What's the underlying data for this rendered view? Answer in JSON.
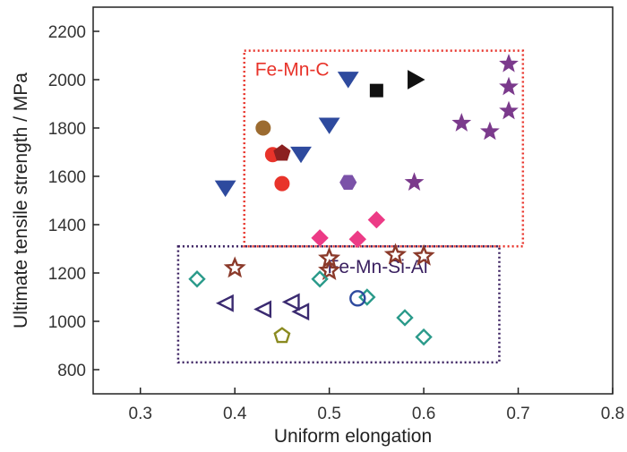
{
  "chart_data": {
    "type": "scatter",
    "title": "",
    "xlabel": "Uniform elongation",
    "ylabel": "Ultimate tensile strength / MPa",
    "xlim": [
      0.25,
      0.8
    ],
    "ylim": [
      700,
      2300
    ],
    "x_ticks": [
      "0.3",
      "0.4",
      "0.5",
      "0.6",
      "0.7",
      "0.8"
    ],
    "y_ticks": [
      "800",
      "1000",
      "1200",
      "1400",
      "1600",
      "1800",
      "2000",
      "2200"
    ],
    "grid": false,
    "legend": "none",
    "annotations": [
      {
        "label": "Fe-Mn-C",
        "color": "#e8332a",
        "box": {
          "x": [
            0.41,
            0.705
          ],
          "y": [
            1310,
            2120
          ]
        }
      },
      {
        "label": "Fe-Mn-Si-Al",
        "color": "#3a2060",
        "box": {
          "x": [
            0.34,
            0.68
          ],
          "y": [
            830,
            1310
          ]
        }
      }
    ],
    "series": [
      {
        "marker": "triangle-down",
        "filled": true,
        "color": "#2e4a9e",
        "points": [
          [
            0.39,
            1555
          ],
          [
            0.47,
            1695
          ],
          [
            0.5,
            1815
          ],
          [
            0.52,
            2005
          ]
        ]
      },
      {
        "marker": "square",
        "filled": true,
        "color": "#111111",
        "points": [
          [
            0.55,
            1955
          ]
        ]
      },
      {
        "marker": "triangle-right",
        "filled": true,
        "color": "#111111",
        "points": [
          [
            0.59,
            2000
          ]
        ]
      },
      {
        "marker": "circle",
        "filled": true,
        "color": "#9c6b30",
        "points": [
          [
            0.43,
            1800
          ]
        ]
      },
      {
        "marker": "circle",
        "filled": true,
        "color": "#e8332a",
        "points": [
          [
            0.44,
            1690
          ],
          [
            0.45,
            1570
          ]
        ]
      },
      {
        "marker": "pentagon",
        "filled": true,
        "color": "#8b2020",
        "points": [
          [
            0.45,
            1695
          ]
        ]
      },
      {
        "marker": "hexagon",
        "filled": true,
        "color": "#7b52a8",
        "points": [
          [
            0.52,
            1575
          ]
        ]
      },
      {
        "marker": "star",
        "filled": true,
        "color": "#7b3a8c",
        "points": [
          [
            0.59,
            1575
          ],
          [
            0.64,
            1820
          ],
          [
            0.67,
            1785
          ],
          [
            0.69,
            1870
          ],
          [
            0.69,
            1970
          ],
          [
            0.69,
            2065
          ]
        ]
      },
      {
        "marker": "diamond",
        "filled": true,
        "color": "#ec3b86",
        "points": [
          [
            0.49,
            1345
          ],
          [
            0.53,
            1340
          ],
          [
            0.55,
            1420
          ]
        ]
      },
      {
        "marker": "star",
        "filled": false,
        "color": "#8b3a2a",
        "points": [
          [
            0.4,
            1220
          ],
          [
            0.5,
            1210
          ],
          [
            0.5,
            1260
          ],
          [
            0.57,
            1275
          ],
          [
            0.6,
            1270
          ]
        ]
      },
      {
        "marker": "diamond",
        "filled": false,
        "color": "#2a9a8a",
        "points": [
          [
            0.36,
            1175
          ],
          [
            0.49,
            1175
          ],
          [
            0.54,
            1100
          ],
          [
            0.58,
            1015
          ],
          [
            0.6,
            935
          ]
        ]
      },
      {
        "marker": "triangle-left",
        "filled": false,
        "color": "#3a2a70",
        "points": [
          [
            0.39,
            1075
          ],
          [
            0.43,
            1050
          ],
          [
            0.46,
            1080
          ],
          [
            0.47,
            1040
          ]
        ]
      },
      {
        "marker": "circle",
        "filled": false,
        "color": "#2e4a9e",
        "points": [
          [
            0.53,
            1095
          ]
        ]
      },
      {
        "marker": "pentagon",
        "filled": false,
        "color": "#8a8a20",
        "points": [
          [
            0.45,
            940
          ]
        ]
      }
    ]
  }
}
